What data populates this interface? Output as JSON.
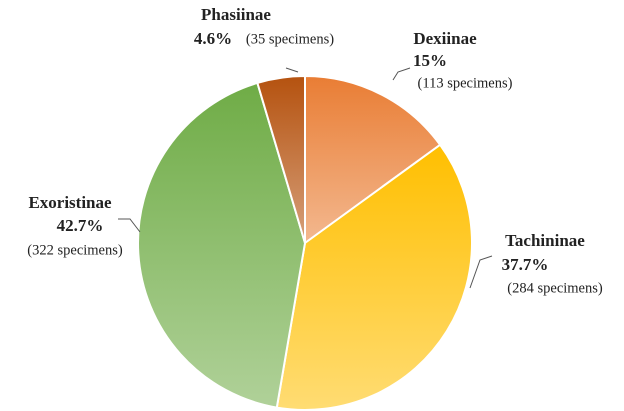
{
  "chart_data": {
    "type": "pie",
    "categories": [
      "Dexiinae",
      "Tachininae",
      "Exoristinae",
      "Phasiinae"
    ],
    "values": [
      15,
      37.7,
      42.7,
      4.6
    ],
    "value_labels": [
      "15%",
      "37.7%",
      "42.7%",
      "4.6%"
    ],
    "count_labels": [
      "(113 specimens)",
      "(284 specimens)",
      "(322 specimens)",
      "(35 specimens)"
    ],
    "colors": [
      "#e97d34",
      "#ffbf00",
      "#6fac46",
      "#b5520f"
    ]
  }
}
